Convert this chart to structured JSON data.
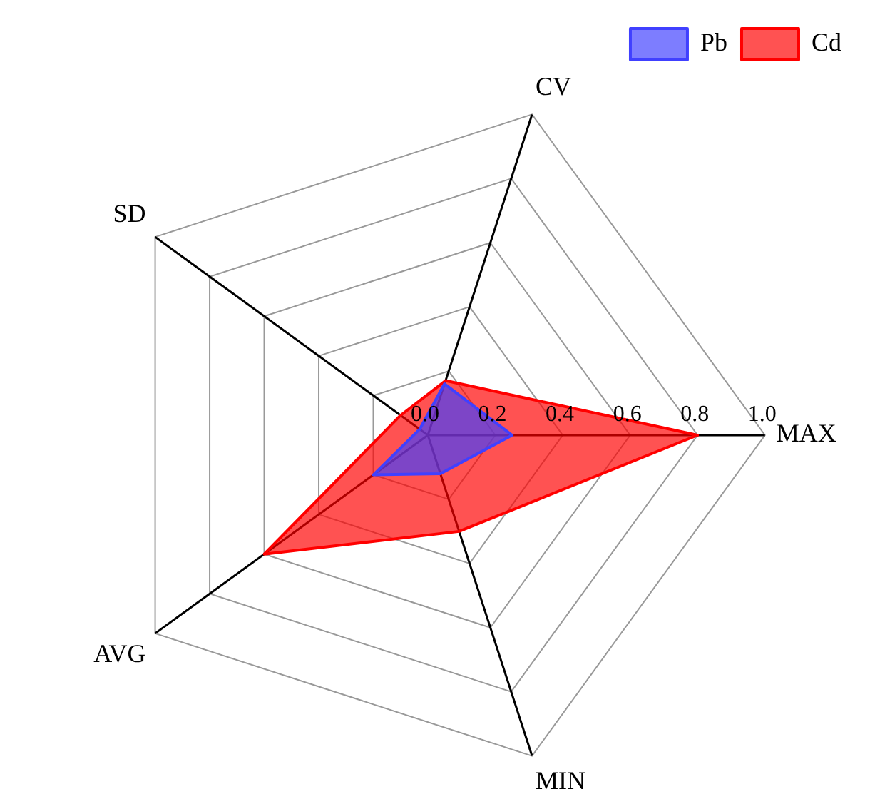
{
  "chart_data": {
    "type": "radar",
    "categories": [
      "CV",
      "MAX",
      "MIN",
      "AVG",
      "SD"
    ],
    "series": [
      {
        "name": "Pb",
        "color": "#4040ff",
        "values": [
          0.16,
          0.25,
          0.12,
          0.2,
          0.03
        ]
      },
      {
        "name": "Cd",
        "color": "#ff0000",
        "values": [
          0.17,
          0.8,
          0.3,
          0.6,
          0.1
        ]
      }
    ],
    "ylim": [
      0,
      1
    ],
    "yticks": [
      {
        "value": 0,
        "label": "0.0"
      },
      {
        "value": 0.2,
        "label": "0.2"
      },
      {
        "value": 0.4,
        "label": "0.4"
      },
      {
        "value": 0.6,
        "label": "0.6"
      },
      {
        "value": 0.8,
        "label": "0.8"
      },
      {
        "value": 1,
        "label": "1.0"
      }
    ],
    "legend": "top right",
    "marker": "none"
  }
}
